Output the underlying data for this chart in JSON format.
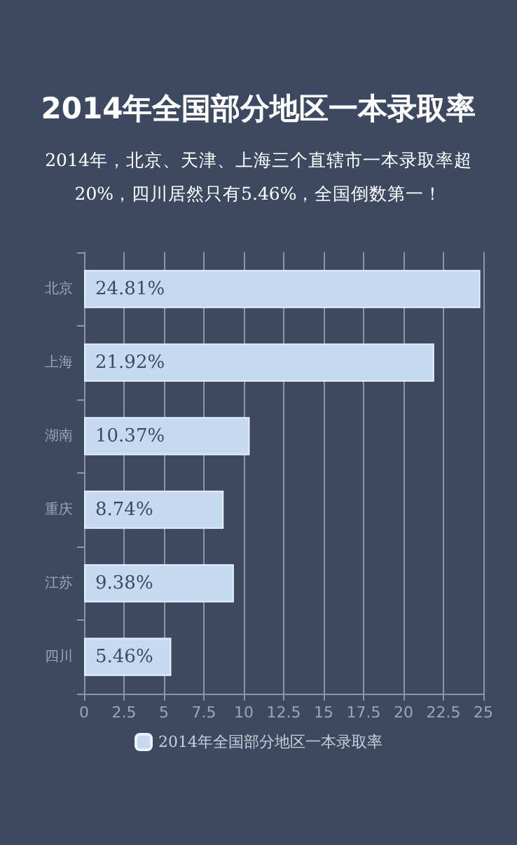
{
  "chart_data": {
    "type": "bar",
    "orientation": "horizontal",
    "title": "2014年全国部分地区一本录取率",
    "subtitle": "2014年，北京、天津、上海三个直辖市一本录取率超20%，四川居然只有5.46%，全国倒数第一！",
    "categories": [
      "北京",
      "上海",
      "湖南",
      "重庆",
      "江苏",
      "四川"
    ],
    "series": [
      {
        "name": "2014年全国部分地区一本录取率",
        "color": "#c5d9f0",
        "values": [
          24.81,
          21.92,
          10.37,
          8.74,
          9.38,
          5.46
        ],
        "value_labels": [
          "24.81%",
          "21.92%",
          "10.37%",
          "8.74%",
          "9.38%",
          "5.46%"
        ]
      }
    ],
    "xlim": [
      0,
      25
    ],
    "xticks": [
      0,
      2.5,
      5,
      7.5,
      10,
      12.5,
      15,
      17.5,
      20,
      22.5,
      25
    ],
    "grid": "x",
    "legend": "bottom"
  }
}
